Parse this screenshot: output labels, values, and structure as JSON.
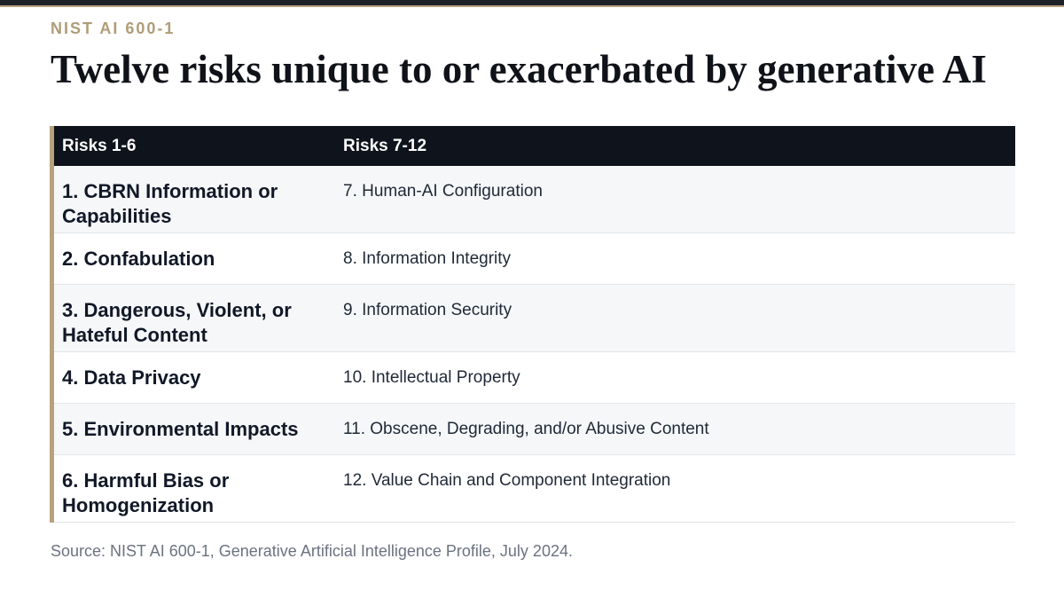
{
  "header": {
    "eyebrow": "NIST AI 600-1",
    "title": "Twelve risks unique to or exacerbated by generative AI"
  },
  "table": {
    "columns": [
      "Risks 1-6",
      "Risks 7-12"
    ],
    "rows": [
      {
        "left": "1. CBRN Information or Capabilities",
        "right": "7. Human-AI Configuration"
      },
      {
        "left": "2. Confabulation",
        "right": "8. Information Integrity"
      },
      {
        "left": "3. Dangerous, Violent, or Hateful Content",
        "right": "9. Information Security"
      },
      {
        "left": "4. Data Privacy",
        "right": "10. Intellectual Property"
      },
      {
        "left": "5. Environmental Impacts",
        "right": "11. Obscene, Degrading, and/or Abusive Content"
      },
      {
        "left": "6. Harmful Bias or Homogenization",
        "right": "12. Value Chain and Component Integration"
      }
    ]
  },
  "footer": {
    "source": "Source: NIST AI 600-1, Generative Artificial Intelligence Profile, July 2024."
  },
  "colors": {
    "accent": "#b8a27c",
    "header_bg": "#0f141c",
    "stripe": "#f5f7f9",
    "source_text": "#6b7280"
  }
}
